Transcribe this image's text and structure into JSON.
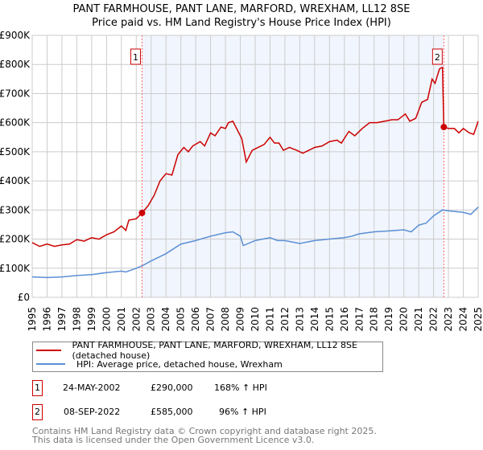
{
  "chart_data": {
    "type": "line",
    "title": "PANT FARMHOUSE, PANT LANE, MARFORD, WREXHAM, LL12 8SE",
    "subtitle": "Price paid vs. HM Land Registry's House Price Index (HPI)",
    "xlim": [
      1995,
      2025
    ],
    "ylim": [
      0,
      900000
    ],
    "y_ticks": [
      {
        "v": 0,
        "label": "£0"
      },
      {
        "v": 100000,
        "label": "£100K"
      },
      {
        "v": 200000,
        "label": "£200K"
      },
      {
        "v": 300000,
        "label": "£300K"
      },
      {
        "v": 400000,
        "label": "£400K"
      },
      {
        "v": 500000,
        "label": "£500K"
      },
      {
        "v": 600000,
        "label": "£600K"
      },
      {
        "v": 700000,
        "label": "£700K"
      },
      {
        "v": 800000,
        "label": "£800K"
      },
      {
        "v": 900000,
        "label": "£900K"
      }
    ],
    "x_ticks": [
      "1995",
      "1996",
      "1997",
      "1998",
      "1999",
      "2000",
      "2001",
      "2002",
      "2003",
      "2004",
      "2005",
      "2006",
      "2007",
      "2008",
      "2009",
      "2010",
      "2011",
      "2012",
      "2013",
      "2014",
      "2015",
      "2016",
      "2017",
      "2018",
      "2019",
      "2020",
      "2021",
      "2022",
      "2023",
      "2024",
      "2025"
    ],
    "grid": true,
    "shaded_range": [
      2002.39,
      2022.69
    ],
    "series": [
      {
        "name": "PANT FARMHOUSE, PANT LANE, MARFORD, WREXHAM, LL12 8SE (detached house)",
        "color": "#cc0000",
        "x": [
          1995,
          1995.5,
          1996,
          1996.5,
          1997,
          1997.5,
          1998,
          1998.5,
          1999,
          1999.5,
          2000,
          2000.5,
          2001,
          2001.3,
          2001.5,
          2002,
          2002.39,
          2002.8,
          2003.2,
          2003.6,
          2004,
          2004.4,
          2004.8,
          2005.2,
          2005.5,
          2005.8,
          2006.3,
          2006.6,
          2007,
          2007.3,
          2007.7,
          2008,
          2008.2,
          2008.5,
          2008.8,
          2009.1,
          2009.4,
          2009.8,
          2010.2,
          2010.6,
          2011,
          2011.3,
          2011.6,
          2011.9,
          2012.3,
          2012.8,
          2013.2,
          2013.6,
          2014,
          2014.5,
          2015,
          2015.5,
          2015.8,
          2016.3,
          2016.7,
          2017.2,
          2017.7,
          2018.2,
          2018.7,
          2019.2,
          2019.6,
          2020.1,
          2020.4,
          2020.8,
          2021.2,
          2021.6,
          2021.9,
          2022.1,
          2022.4,
          2022.6,
          2022.69,
          2023,
          2023.4,
          2023.7,
          2024,
          2024.4,
          2024.7,
          2025
        ],
        "y": [
          188000,
          175000,
          183000,
          175000,
          180000,
          183000,
          198000,
          193000,
          205000,
          200000,
          215000,
          225000,
          245000,
          230000,
          265000,
          270000,
          290000,
          315000,
          350000,
          400000,
          425000,
          420000,
          490000,
          515000,
          500000,
          520000,
          535000,
          520000,
          565000,
          555000,
          585000,
          580000,
          600000,
          605000,
          575000,
          545000,
          465000,
          505000,
          515000,
          525000,
          550000,
          530000,
          530000,
          505000,
          515000,
          505000,
          495000,
          505000,
          515000,
          520000,
          535000,
          540000,
          530000,
          570000,
          555000,
          580000,
          600000,
          600000,
          605000,
          610000,
          610000,
          630000,
          605000,
          615000,
          670000,
          680000,
          750000,
          735000,
          785000,
          790000,
          585000,
          580000,
          580000,
          565000,
          580000,
          565000,
          560000,
          605000
        ]
      },
      {
        "name": "HPI: Average price, detached house, Wrexham",
        "color": "#5b8fd4",
        "x": [
          1995,
          1996,
          1997,
          1998,
          1999,
          2000,
          2001,
          2001.3,
          2002,
          2002.39,
          2003,
          2004,
          2005,
          2006,
          2007,
          2008,
          2008.5,
          2009,
          2009.2,
          2010,
          2011,
          2011.5,
          2012,
          2013,
          2014,
          2015,
          2016,
          2016.5,
          2017,
          2018,
          2019,
          2020,
          2020.5,
          2021,
          2021.5,
          2022,
          2022.6,
          2023,
          2024,
          2024.5,
          2025
        ],
        "y": [
          70000,
          68000,
          70000,
          75000,
          78000,
          85000,
          90000,
          87000,
          100000,
          108000,
          125000,
          150000,
          183000,
          195000,
          210000,
          222000,
          225000,
          210000,
          178000,
          195000,
          205000,
          195000,
          195000,
          185000,
          195000,
          200000,
          205000,
          210000,
          218000,
          225000,
          228000,
          232000,
          225000,
          248000,
          255000,
          280000,
          300000,
          297000,
          292000,
          285000,
          310000
        ]
      }
    ],
    "annotations": [
      {
        "label": "1",
        "x": 2002.39,
        "y": 290000
      },
      {
        "label": "2",
        "x": 2022.69,
        "y": 585000
      }
    ]
  },
  "legend": {
    "red": "PANT FARMHOUSE, PANT LANE, MARFORD, WREXHAM, LL12 8SE (detached house)",
    "blue": "HPI: Average price, detached house, Wrexham"
  },
  "transactions": [
    {
      "num": "1",
      "date": "24-MAY-2002",
      "price": "£290,000",
      "hpi": "168% ↑ HPI"
    },
    {
      "num": "2",
      "date": "08-SEP-2022",
      "price": "£585,000",
      "hpi": "96% ↑ HPI"
    }
  ],
  "footer": {
    "line1": "Contains HM Land Registry data © Crown copyright and database right 2025.",
    "line2": "This data is licensed under the Open Government Licence v3.0."
  }
}
